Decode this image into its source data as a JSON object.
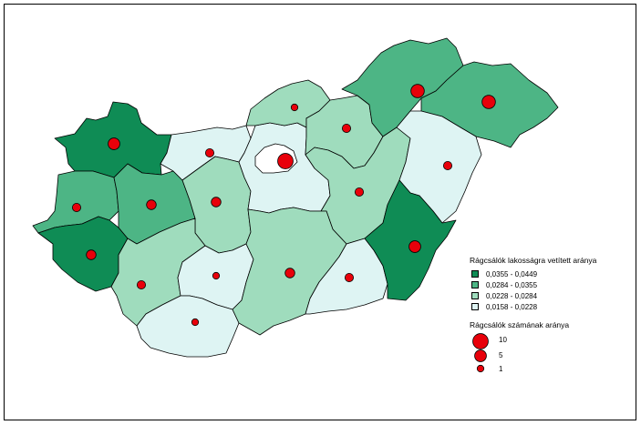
{
  "colors": {
    "class1": "#0f8c55",
    "class2": "#4db585",
    "class3": "#9fdcbd",
    "class4": "#def4f3",
    "budapest": "#ffffff",
    "dot": "#e8000a"
  },
  "legend": {
    "fill_title": "Rágcsálók lakosságra vetített aránya",
    "classes": [
      {
        "label": "0,0355 - 0,0449",
        "color": "#0f8c55"
      },
      {
        "label": "0,0284 - 0,0355",
        "color": "#4db585"
      },
      {
        "label": "0,0228 - 0,0284",
        "color": "#9fdcbd"
      },
      {
        "label": "0,0158 - 0,0228",
        "color": "#def4f3"
      }
    ],
    "size_title": "Rágcsálók számának aránya",
    "sizes": [
      {
        "label": "10",
        "value": 10
      },
      {
        "label": "5",
        "value": 5
      },
      {
        "label": "1",
        "value": 1
      }
    ]
  },
  "regions": [
    {
      "id": "gyor-moson-sopron",
      "class": 1,
      "dot": 5
    },
    {
      "id": "vas",
      "class": 2,
      "dot": 2
    },
    {
      "id": "zala",
      "class": 1,
      "dot": 3
    },
    {
      "id": "veszprem",
      "class": 2,
      "dot": 3
    },
    {
      "id": "komarom-esztergom",
      "class": 4,
      "dot": 2
    },
    {
      "id": "fejer",
      "class": 3,
      "dot": 3
    },
    {
      "id": "somogy",
      "class": 3,
      "dot": 2
    },
    {
      "id": "tolna",
      "class": 4,
      "dot": 1
    },
    {
      "id": "baranya",
      "class": 4,
      "dot": 1
    },
    {
      "id": "pest",
      "class": 4,
      "dot": 0
    },
    {
      "id": "budapest",
      "class": 0,
      "dot": 10
    },
    {
      "id": "nograd",
      "class": 3,
      "dot": 1
    },
    {
      "id": "heves",
      "class": 3,
      "dot": 2
    },
    {
      "id": "borsod-abauj-zemplen",
      "class": 2,
      "dot": 7
    },
    {
      "id": "szabolcs-szatmar-bereg",
      "class": 2,
      "dot": 7
    },
    {
      "id": "jasz-nagykun-szolnok",
      "class": 3,
      "dot": 2
    },
    {
      "id": "hajdu-bihar",
      "class": 4,
      "dot": 2
    },
    {
      "id": "bacs-kiskun",
      "class": 3,
      "dot": 3
    },
    {
      "id": "csongrad",
      "class": 4,
      "dot": 2
    },
    {
      "id": "bekes",
      "class": 1,
      "dot": 5
    }
  ]
}
